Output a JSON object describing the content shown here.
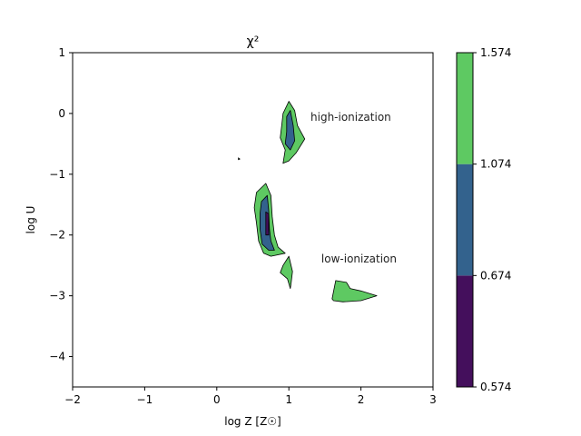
{
  "chart_data": {
    "type": "contour",
    "title": "χ²",
    "xlabel": "log Z [Z☉]",
    "ylabel": "log U",
    "xlim": [
      -2,
      3
    ],
    "ylim": [
      -4.5,
      1
    ],
    "xticks": [
      -2,
      -1,
      0,
      1,
      2,
      3
    ],
    "yticks": [
      1,
      0,
      -1,
      -2,
      -3,
      -4
    ],
    "xtick_labels": [
      "−2",
      "−1",
      "0",
      "1",
      "2",
      "3"
    ],
    "ytick_labels": [
      "1",
      "0",
      "−1",
      "−2",
      "−3",
      "−4"
    ],
    "grid": false,
    "levels": [
      {
        "lo": 0.574,
        "hi": 0.674,
        "color": "#440f5c"
      },
      {
        "lo": 0.674,
        "hi": 1.074,
        "color": "#33628d"
      },
      {
        "lo": 1.074,
        "hi": 1.574,
        "color": "#5ec962"
      }
    ],
    "colorbar_ticks": [
      "0.574",
      "0.674",
      "1.074",
      "1.574"
    ],
    "regions": [
      {
        "level": 2,
        "points": [
          [
            0.92,
            0.0
          ],
          [
            1.0,
            0.2
          ],
          [
            1.08,
            0.05
          ],
          [
            1.12,
            -0.2
          ],
          [
            1.22,
            -0.42
          ],
          [
            1.1,
            -0.65
          ],
          [
            1.0,
            -0.78
          ],
          [
            0.92,
            -0.82
          ],
          [
            0.95,
            -0.6
          ],
          [
            0.88,
            -0.4
          ],
          [
            0.9,
            -0.2
          ]
        ]
      },
      {
        "level": 1,
        "points": [
          [
            0.97,
            -0.05
          ],
          [
            1.02,
            0.05
          ],
          [
            1.06,
            -0.2
          ],
          [
            1.08,
            -0.45
          ],
          [
            1.02,
            -0.6
          ],
          [
            0.95,
            -0.5
          ],
          [
            0.97,
            -0.3
          ]
        ]
      },
      {
        "level": 2,
        "points": [
          [
            0.55,
            -1.3
          ],
          [
            0.68,
            -1.15
          ],
          [
            0.75,
            -1.35
          ],
          [
            0.77,
            -1.7
          ],
          [
            0.8,
            -2.0
          ],
          [
            0.85,
            -2.2
          ],
          [
            0.95,
            -2.3
          ],
          [
            0.75,
            -2.35
          ],
          [
            0.65,
            -2.3
          ],
          [
            0.58,
            -2.1
          ],
          [
            0.55,
            -1.8
          ],
          [
            0.52,
            -1.55
          ]
        ]
      },
      {
        "level": 1,
        "points": [
          [
            0.62,
            -1.45
          ],
          [
            0.7,
            -1.35
          ],
          [
            0.72,
            -1.6
          ],
          [
            0.73,
            -1.9
          ],
          [
            0.75,
            -2.1
          ],
          [
            0.8,
            -2.25
          ],
          [
            0.72,
            -2.25
          ],
          [
            0.63,
            -2.15
          ],
          [
            0.6,
            -1.9
          ],
          [
            0.6,
            -1.65
          ]
        ]
      },
      {
        "level": 0,
        "points": [
          [
            0.68,
            -1.62
          ],
          [
            0.72,
            -1.65
          ],
          [
            0.72,
            -2.0
          ],
          [
            0.68,
            -2.0
          ]
        ]
      },
      {
        "level": 2,
        "points": [
          [
            0.92,
            -2.5
          ],
          [
            1.0,
            -2.35
          ],
          [
            1.05,
            -2.6
          ],
          [
            1.03,
            -2.8
          ],
          [
            1.02,
            -2.88
          ],
          [
            0.98,
            -2.72
          ],
          [
            0.88,
            -2.62
          ]
        ]
      },
      {
        "level": 2,
        "points": [
          [
            1.6,
            -3.05
          ],
          [
            1.65,
            -2.75
          ],
          [
            1.8,
            -2.78
          ],
          [
            1.85,
            -2.88
          ],
          [
            2.0,
            -2.92
          ],
          [
            2.22,
            -3.0
          ],
          [
            2.0,
            -3.08
          ],
          [
            1.75,
            -3.1
          ],
          [
            1.62,
            -3.08
          ]
        ]
      },
      {
        "level": 2,
        "points": [
          [
            0.3,
            -0.73
          ],
          [
            0.32,
            -0.75
          ],
          [
            0.3,
            -0.76
          ]
        ]
      }
    ],
    "annotations": [
      {
        "text": "high-ionization",
        "x": 1.3,
        "y": -0.12
      },
      {
        "text": "low-ionization",
        "x": 1.45,
        "y": -2.45
      }
    ]
  }
}
